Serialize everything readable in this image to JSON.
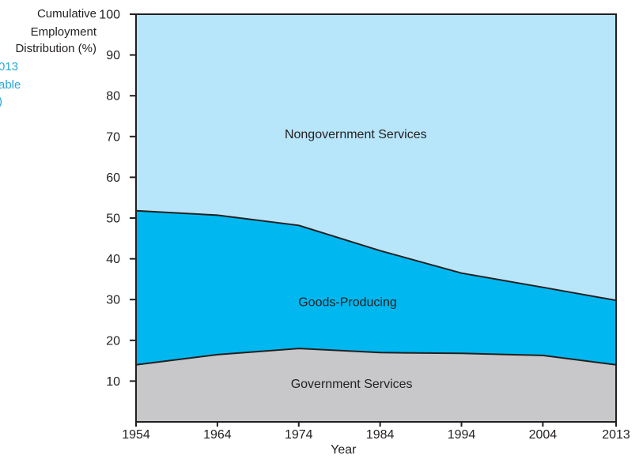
{
  "chart_data": {
    "type": "area",
    "stacked": true,
    "x": [
      1954,
      1964,
      1974,
      1984,
      1994,
      2004,
      2013
    ],
    "series": [
      {
        "name": "Government Services",
        "values": [
          14,
          16.5,
          18,
          17,
          16.8,
          16.3,
          14
        ]
      },
      {
        "name": "Goods-Producing",
        "values": [
          37.8,
          34.2,
          30.2,
          25,
          19.7,
          16.7,
          15.8
        ]
      },
      {
        "name": "Nongovernment Services",
        "values": [
          48.2,
          49.3,
          51.8,
          58,
          63.5,
          67,
          70.2
        ]
      }
    ],
    "cumulative_boundaries": [
      [
        14,
        16.5,
        18,
        17,
        16.8,
        16.3,
        14
      ],
      [
        51.8,
        50.7,
        48.2,
        42,
        36.5,
        33,
        29.8
      ]
    ],
    "colors": [
      "#c8c8ca",
      "#00b8ef",
      "#b7e5fa"
    ],
    "xlabel": "Year",
    "ylabel_lines": [
      "Cumulative",
      "Employment",
      "Distribution (%)"
    ],
    "xticks": [
      "1954",
      "1964",
      "1974",
      "1984",
      "1994",
      "2004",
      "2013"
    ],
    "yticks": [
      "10",
      "20",
      "30",
      "40",
      "50",
      "60",
      "70",
      "80",
      "90",
      "100"
    ],
    "ylim": [
      0,
      100
    ],
    "xlim": [
      1954,
      2013
    ],
    "region_labels": [
      "Government Services",
      "Goods-Producing",
      "Nongovernment Services"
    ]
  },
  "cut_text": [
    "013",
    "able",
    ")"
  ]
}
